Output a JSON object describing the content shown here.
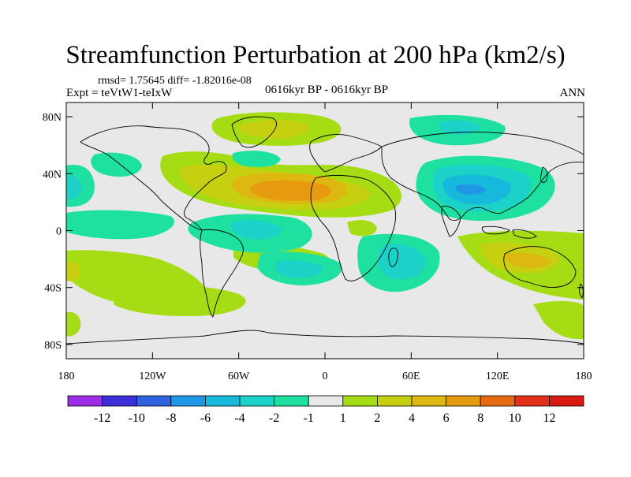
{
  "title": "Streamfunction Perturbation at 200 hPa (km2/s)",
  "stats_line": "rmsd= 1.75645 diff= -1.82016e-08",
  "experiment_line": "Expt = teVtW1-teIxW",
  "period_line": "0616kyr BP - 0616kyr BP",
  "season": "ANN",
  "map": {
    "lon_range": [
      -180,
      180
    ],
    "lat_range": [
      -90,
      90
    ],
    "lat_ticks": [
      {
        "value": 80,
        "label": "80N"
      },
      {
        "value": 40,
        "label": "40N"
      },
      {
        "value": 0,
        "label": "0"
      },
      {
        "value": -40,
        "label": "40S"
      },
      {
        "value": -80,
        "label": "80S"
      }
    ],
    "lon_ticks": [
      {
        "value": -180,
        "label": "180"
      },
      {
        "value": -120,
        "label": "120W"
      },
      {
        "value": -60,
        "label": "60W"
      },
      {
        "value": 0,
        "label": "0"
      },
      {
        "value": 60,
        "label": "60E"
      },
      {
        "value": 120,
        "label": "120E"
      },
      {
        "value": 180,
        "label": "180"
      }
    ]
  },
  "colorbar": {
    "levels": [
      "-12",
      "-10",
      "-8",
      "-6",
      "-4",
      "-2",
      "-1",
      "1",
      "2",
      "4",
      "6",
      "8",
      "10",
      "12"
    ],
    "colors": [
      "#9b2ee6",
      "#3a2fd8",
      "#2e62e0",
      "#1e98e6",
      "#16b8dc",
      "#1cd2c8",
      "#1ee0a0",
      "#e8e8e8",
      "#a6dc14",
      "#c6d010",
      "#dcb810",
      "#e69a10",
      "#e86a10",
      "#e2301a",
      "#d81a10"
    ]
  }
}
